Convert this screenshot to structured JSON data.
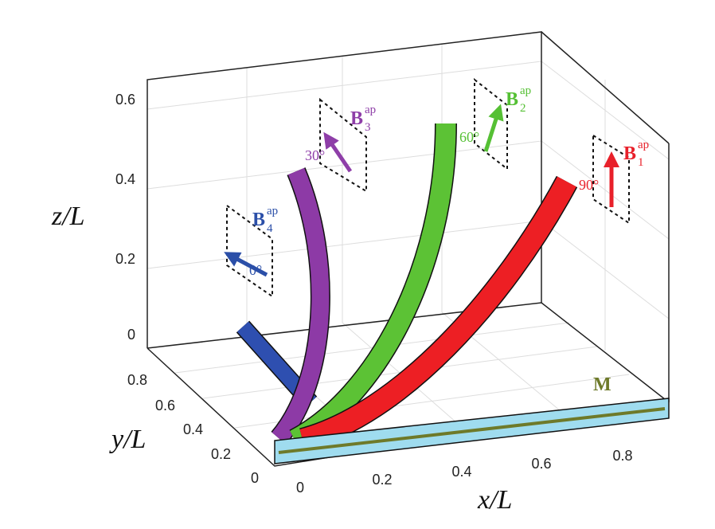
{
  "axes": {
    "z_label": "z/L",
    "y_label": "y/L",
    "x_label": "x/L",
    "z_ticks": [
      "0",
      "0.2",
      "0.4",
      "0.6"
    ],
    "y_ticks": [
      "0",
      "0.2",
      "0.4",
      "0.6",
      "0.8"
    ],
    "x_ticks": [
      "0",
      "0.2",
      "0.4",
      "0.6",
      "0.8"
    ]
  },
  "fields": [
    {
      "symbol": "B",
      "sup": "ap",
      "sub": "1",
      "angle": "90°"
    },
    {
      "symbol": "B",
      "sup": "ap",
      "sub": "2",
      "angle": "60°"
    },
    {
      "symbol": "B",
      "sup": "ap",
      "sub": "3",
      "angle": "30°"
    },
    {
      "symbol": "B",
      "sup": "ap",
      "sub": "4",
      "angle": "0°"
    }
  ],
  "magnetization": "M"
}
